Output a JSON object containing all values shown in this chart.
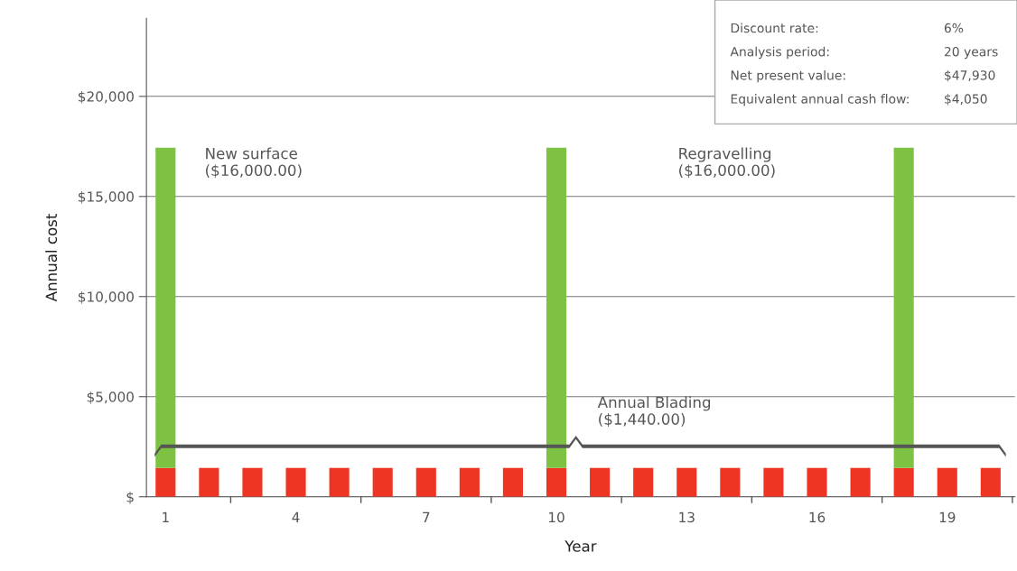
{
  "chart_data": {
    "type": "bar",
    "stacked": true,
    "xlabel": "Year",
    "ylabel": "Annual cost",
    "categories": [
      "1",
      null,
      null,
      "4",
      null,
      null,
      "7",
      null,
      null,
      "10",
      null,
      null,
      "13",
      null,
      null,
      "16",
      null,
      null,
      "19",
      null
    ],
    "series": [
      {
        "color": "#ee3524",
        "values": [
          1440,
          1440,
          1440,
          1440,
          1440,
          1440,
          1440,
          1440,
          1440,
          1440,
          1440,
          1440,
          1440,
          1440,
          1440,
          1440,
          1440,
          1440,
          1440,
          1440
        ]
      },
      {
        "color": "#7dc242",
        "values": [
          16000,
          null,
          null,
          null,
          null,
          null,
          null,
          null,
          null,
          16000,
          null,
          null,
          null,
          null,
          null,
          null,
          null,
          16000,
          null,
          null
        ]
      }
    ],
    "ylim": [
      0,
      23900
    ],
    "yticks": [
      {
        "value": 0,
        "label": "$"
      },
      {
        "value": 5000,
        "label": "$5,000"
      },
      {
        "value": 10000,
        "label": "$10,000"
      },
      {
        "value": 15000,
        "label": "$15,000"
      },
      {
        "value": 20000,
        "label": "$20,000"
      }
    ],
    "grid": "y",
    "annotations": [
      "New surface\n($16,000.00)",
      "Regravelling\n($16,000.00)",
      "Annual Blading\n($1,440.00)",
      "Discount rate:",
      "6%",
      "Analysis period:",
      "20 years",
      "Net present value:",
      "$47,930",
      "Equivalent annual cash flow:",
      "$4,050"
    ]
  }
}
